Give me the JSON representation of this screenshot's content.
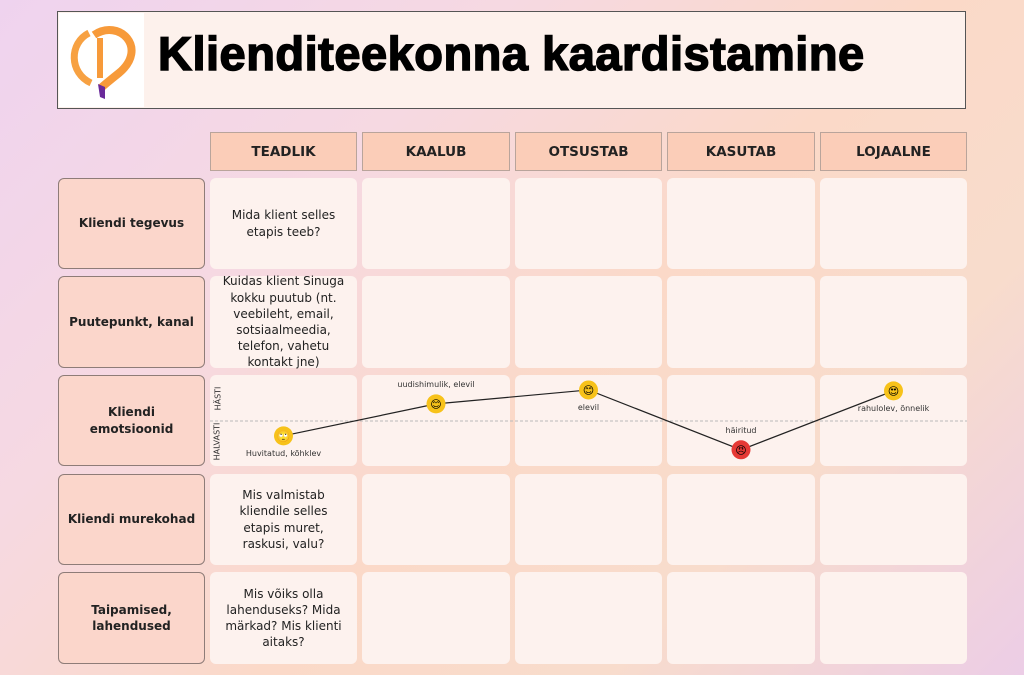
{
  "header": {
    "title": "Klienditeekonna kaardistamine"
  },
  "columns": [
    "TEADLIK",
    "KAALUB",
    "OTSUSTAB",
    "KASUTAB",
    "LOJAALNE"
  ],
  "rows": [
    {
      "label": "Kliendi tegevus",
      "first_cell": "Mida klient selles etapis teeb?"
    },
    {
      "label": "Puutepunkt, kanal",
      "first_cell": "Kuidas klient Sinuga kokku puutub (nt. veebileht, email, sotsiaalmeedia, telefon, vahetu kontakt jne)"
    },
    {
      "label": "Kliendi emotsioonid",
      "first_cell": ""
    },
    {
      "label": "Kliendi murekohad",
      "first_cell": "Mis valmistab kliendile selles etapis muret, raskusi, valu?"
    },
    {
      "label": "Taipamised, lahendused",
      "first_cell": "Mis võiks olla lahenduseks? Mida märkad? Mis klienti aitaks?"
    }
  ],
  "emotions": {
    "axis_top": "HÄSTI",
    "axis_bottom": "HALVASTI",
    "points": [
      {
        "label": "Huvitatud, kõhklev",
        "score": -0.33,
        "icon": "confused-face-icon",
        "emoji": "🙄",
        "color": "#f7c21a",
        "label_pos": "below"
      },
      {
        "label": "uudishimulik, elevil",
        "score": 0.38,
        "icon": "smiling-face-icon",
        "emoji": "😊",
        "color": "#f7c21a",
        "label_pos": "above"
      },
      {
        "label": "elevil",
        "score": 0.69,
        "icon": "happy-face-icon",
        "emoji": "😊",
        "color": "#f7c21a",
        "label_pos": "below"
      },
      {
        "label": "häiritud",
        "score": -0.64,
        "icon": "angry-face-icon",
        "emoji": "😠",
        "color": "#e53935",
        "label_pos": "above"
      },
      {
        "label": "rahulolev, õnnelik",
        "score": 0.67,
        "icon": "heart-eyes-face-icon",
        "emoji": "😍",
        "color": "#f7c21a",
        "label_pos": "below"
      }
    ]
  }
}
